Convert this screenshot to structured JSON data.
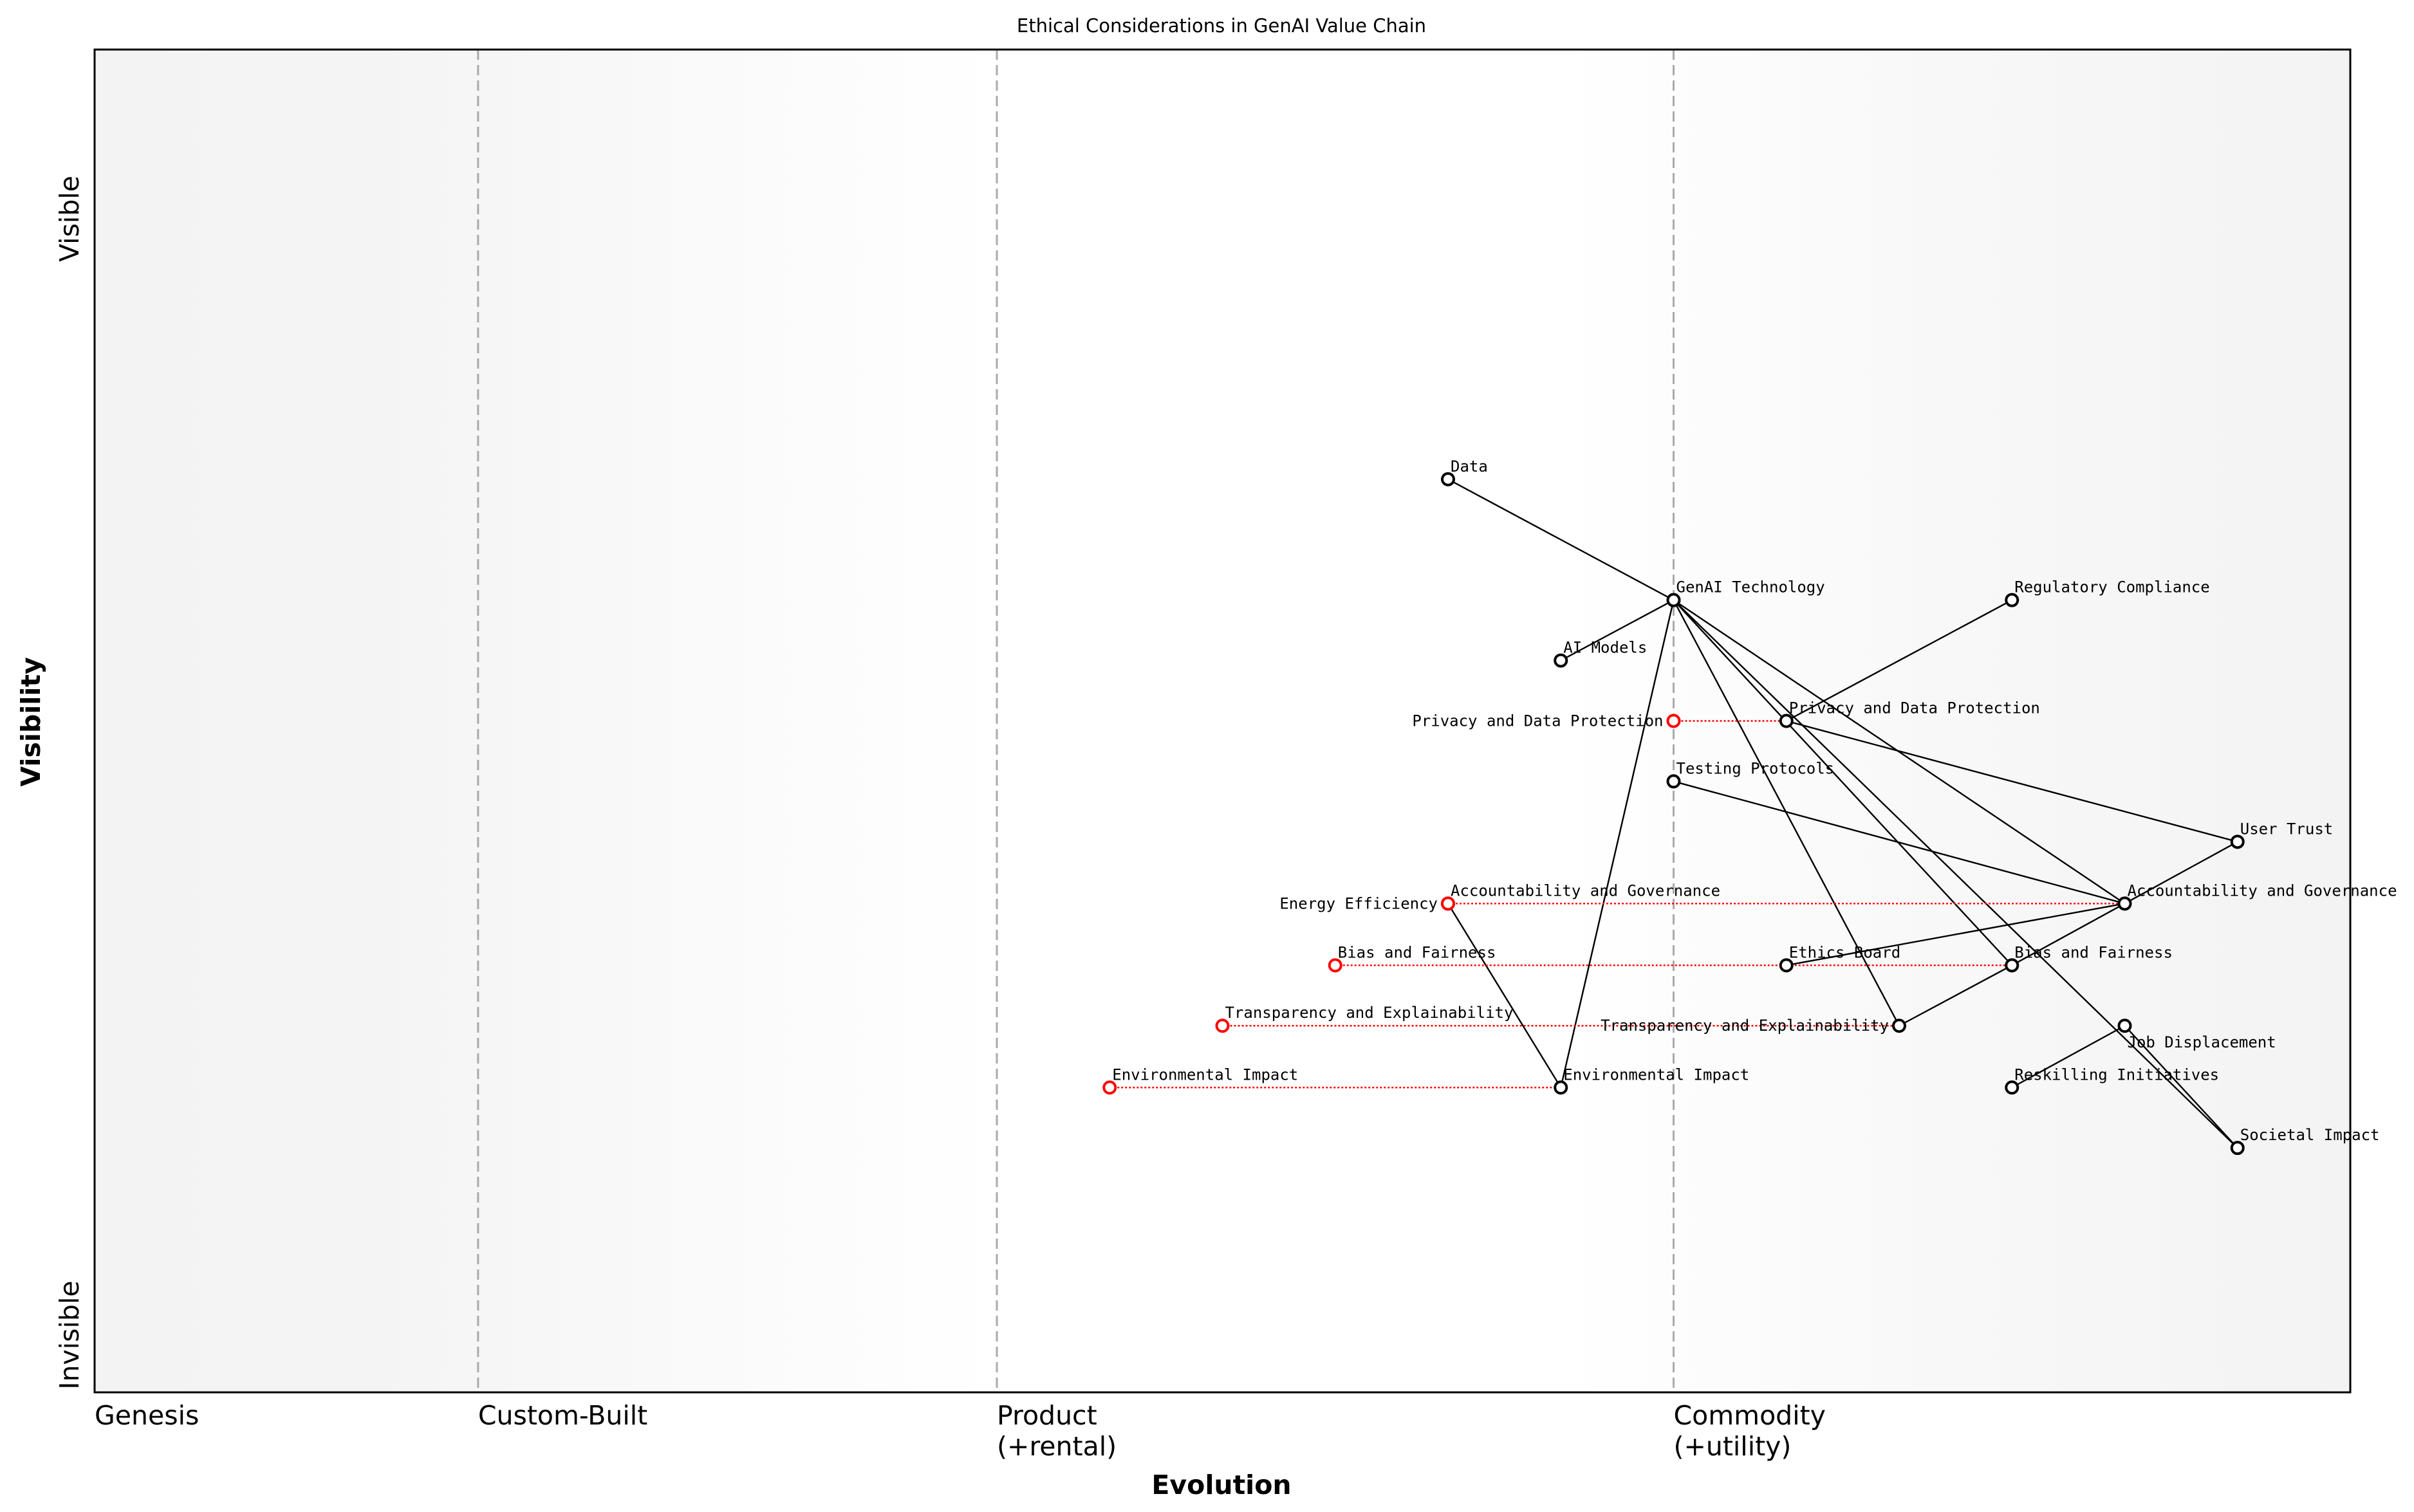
{
  "chart_data": {
    "type": "wardley-map",
    "title": "Ethical Considerations in GenAI Value Chain",
    "xlabel": "Evolution",
    "ylabel": "Visibility",
    "xlim": [
      0,
      1
    ],
    "ylim": [
      0,
      1
    ],
    "y_ticks": [
      {
        "label": "Invisible",
        "value": 0.0
      },
      {
        "label": "Visible",
        "value": 1.0
      }
    ],
    "stages": [
      {
        "label": "Genesis",
        "sub": "",
        "value": 0.0
      },
      {
        "label": "Custom-Built",
        "sub": "",
        "value": 0.17
      },
      {
        "label": "Product",
        "sub": "(+rental)",
        "value": 0.4
      },
      {
        "label": "Commodity",
        "sub": "(+utility)",
        "value": 0.7
      }
    ],
    "nodes": [
      {
        "name": "Data",
        "evolution": 0.6,
        "visibility": 0.68
      },
      {
        "name": "GenAI Technology",
        "evolution": 0.7,
        "visibility": 0.59
      },
      {
        "name": "AI Models",
        "evolution": 0.65,
        "visibility": 0.545
      },
      {
        "name": "Regulatory Compliance",
        "evolution": 0.85,
        "visibility": 0.59
      },
      {
        "name": "Privacy and Data Protection",
        "evolution": 0.75,
        "visibility": 0.5
      },
      {
        "name": "Testing Protocols",
        "evolution": 0.7,
        "visibility": 0.455
      },
      {
        "name": "User Trust",
        "evolution": 0.95,
        "visibility": 0.41
      },
      {
        "name": "Accountability and Governance",
        "evolution": 0.9,
        "visibility": 0.364
      },
      {
        "name": "Energy Efficiency",
        "evolution": 0.6,
        "visibility": 0.364
      },
      {
        "name": "Ethics Board",
        "evolution": 0.75,
        "visibility": 0.318
      },
      {
        "name": "Bias and Fairness",
        "evolution": 0.85,
        "visibility": 0.318
      },
      {
        "name": "Transparency and Explainability",
        "evolution": 0.8,
        "visibility": 0.273
      },
      {
        "name": "Job Displacement",
        "evolution": 0.9,
        "visibility": 0.273
      },
      {
        "name": "Environmental Impact",
        "evolution": 0.65,
        "visibility": 0.227
      },
      {
        "name": "Reskilling Initiatives",
        "evolution": 0.85,
        "visibility": 0.227
      },
      {
        "name": "Societal Impact",
        "evolution": 0.95,
        "visibility": 0.182
      }
    ],
    "links": [
      [
        "Data",
        "GenAI Technology"
      ],
      [
        "GenAI Technology",
        "AI Models"
      ],
      [
        "GenAI Technology",
        "Environmental Impact"
      ],
      [
        "GenAI Technology",
        "Transparency and Explainability"
      ],
      [
        "GenAI Technology",
        "Bias and Fairness"
      ],
      [
        "GenAI Technology",
        "Societal Impact"
      ],
      [
        "GenAI Technology",
        "Accountability and Governance"
      ],
      [
        "Privacy and Data Protection",
        "Regulatory Compliance"
      ],
      [
        "Privacy and Data Protection",
        "User Trust"
      ],
      [
        "Testing Protocols",
        "Accountability and Governance"
      ],
      [
        "Accountability and Governance",
        "User Trust"
      ],
      [
        "Accountability and Governance",
        "Ethics Board"
      ],
      [
        "Accountability and Governance",
        "Bias and Fairness"
      ],
      [
        "Bias and Fairness",
        "Transparency and Explainability"
      ],
      [
        "Job Displacement",
        "Reskilling Initiatives"
      ],
      [
        "Job Displacement",
        "Societal Impact"
      ],
      [
        "Energy Efficiency",
        "Environmental Impact"
      ]
    ],
    "evolutions": [
      {
        "name": "Privacy and Data Protection",
        "from": 0.7,
        "to": 0.75,
        "visibility": 0.5
      },
      {
        "name": "Accountability and Governance",
        "from": 0.6,
        "to": 0.9,
        "visibility": 0.364
      },
      {
        "name": "Bias and Fairness",
        "from": 0.55,
        "to": 0.85,
        "visibility": 0.318
      },
      {
        "name": "Transparency and Explainability",
        "from": 0.5,
        "to": 0.8,
        "visibility": 0.273
      },
      {
        "name": "Environmental Impact",
        "from": 0.45,
        "to": 0.65,
        "visibility": 0.227
      }
    ],
    "colors": {
      "node": "#000000",
      "evolution": "#ff0000",
      "stage_line": "#aaaaaa",
      "edge_shade": "#f5f5f5"
    }
  }
}
